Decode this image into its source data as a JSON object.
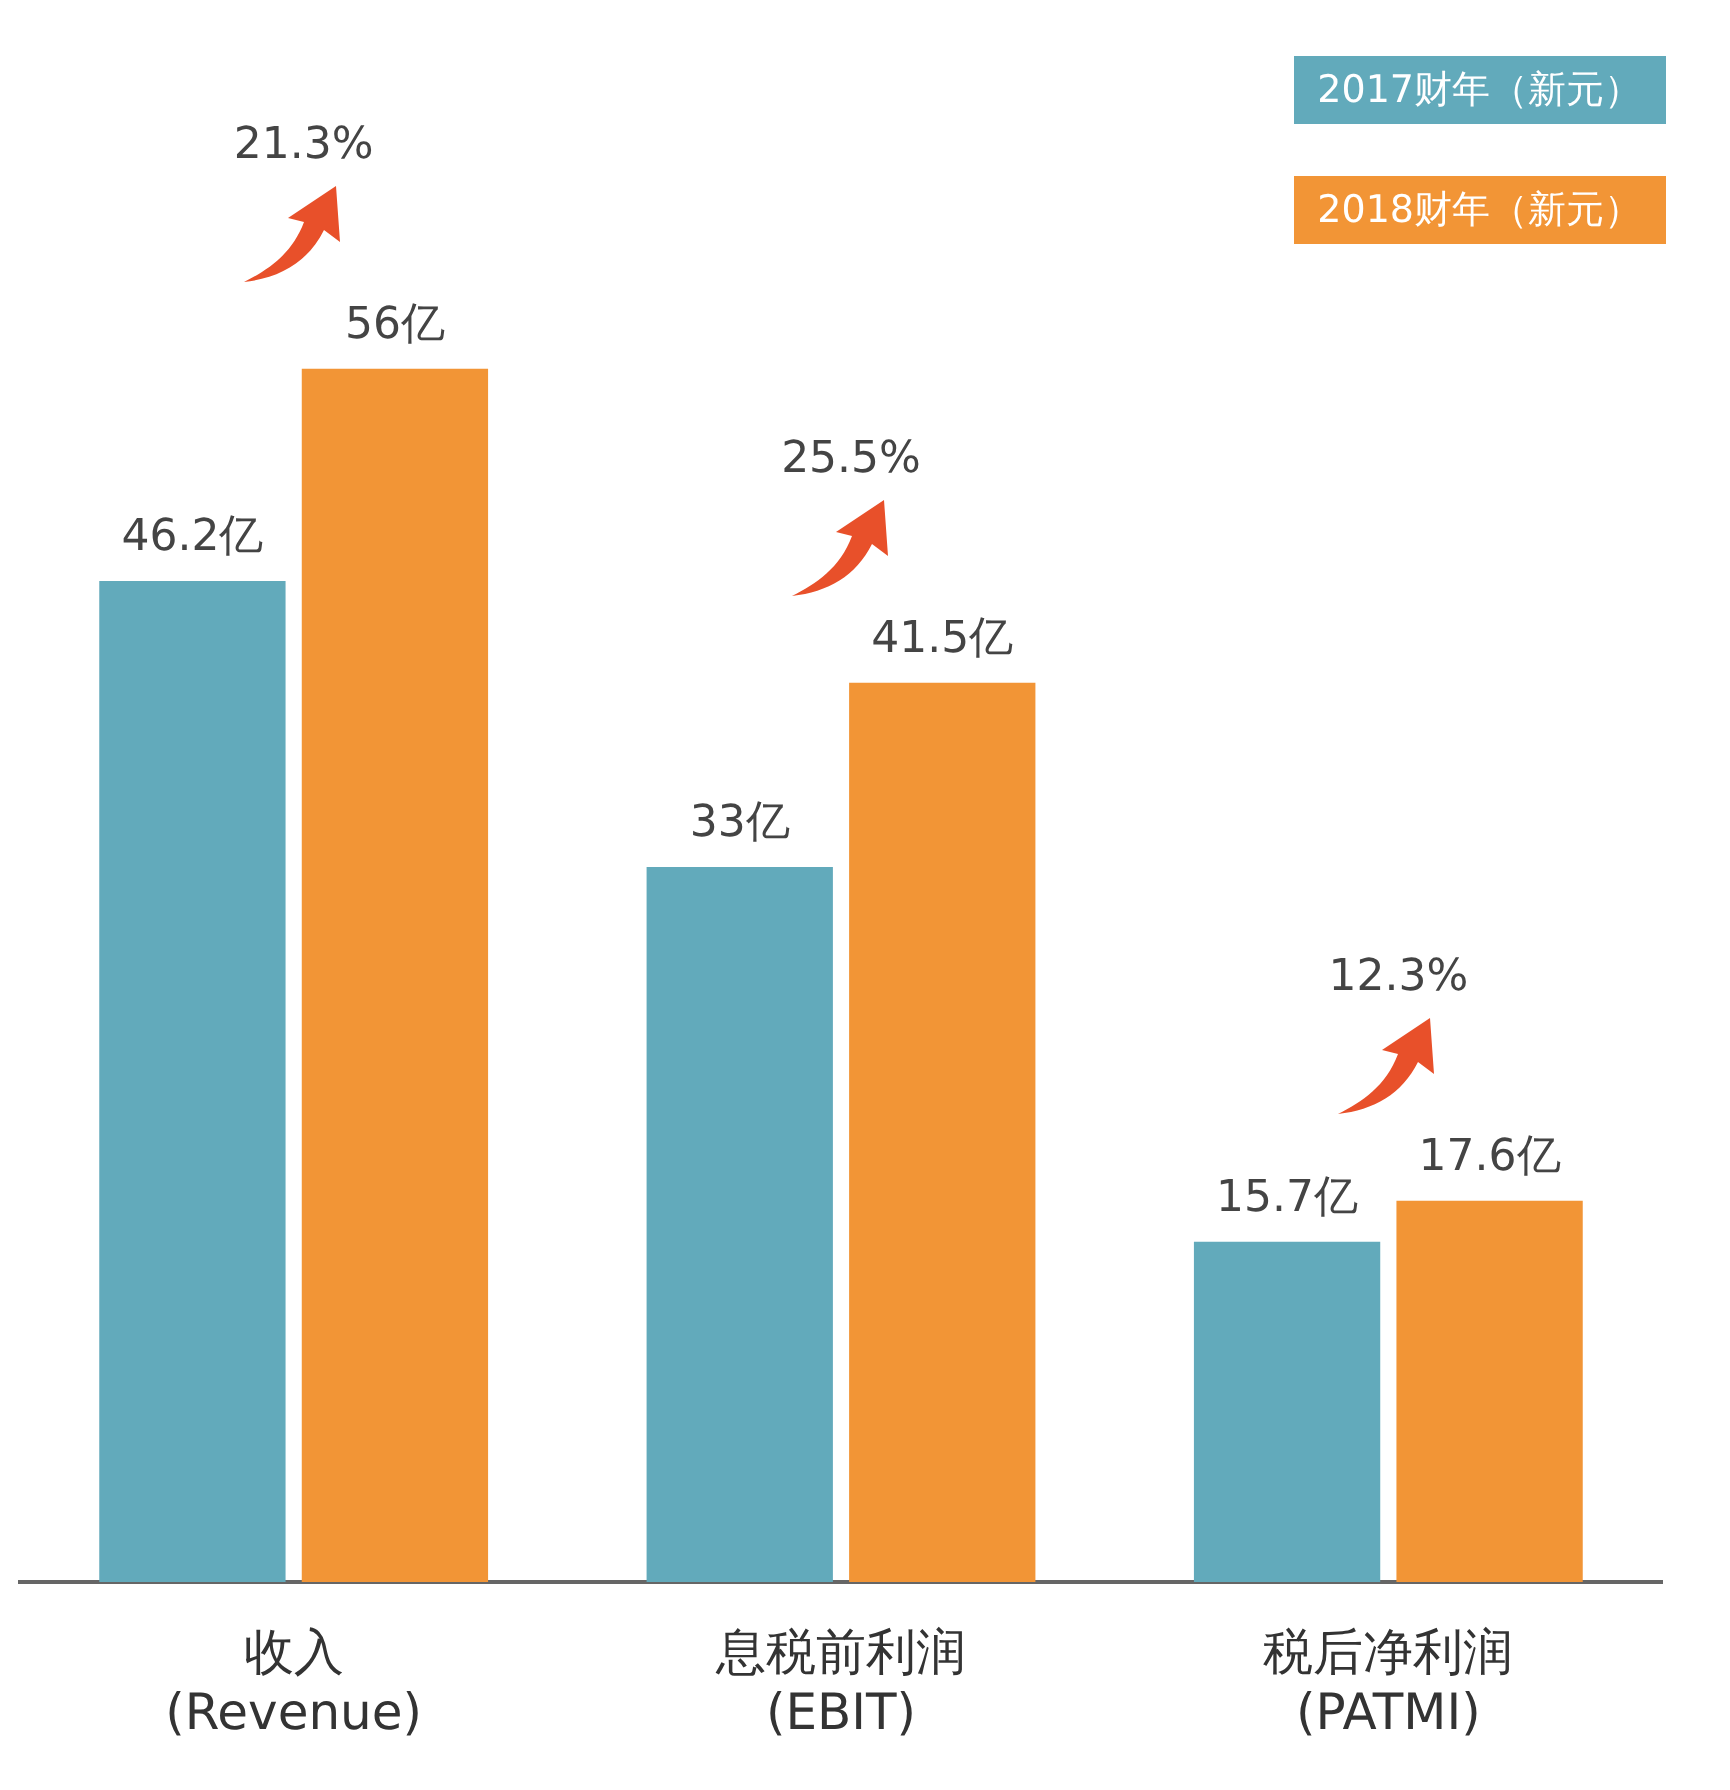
{
  "chart_data": {
    "type": "bar",
    "categories": [
      "收入\n(Revenue)",
      "息税前利润\n(EBIT)",
      "税后净利润\n(PATMI)"
    ],
    "series": [
      {
        "name": "2017财年（新元）",
        "color": "#62aabb",
        "values": [
          46.2,
          33,
          15.7
        ],
        "value_labels": [
          "46.2亿",
          "33亿",
          "15.7亿"
        ]
      },
      {
        "name": "2018财年（新元）",
        "color": "#f29536",
        "values": [
          56,
          41.5,
          17.6
        ],
        "value_labels": [
          "56亿",
          "41.5亿",
          "17.6亿"
        ]
      }
    ],
    "legend": "top right",
    "annotations": [
      "21.3%",
      "25.5%",
      "12.3%"
    ]
  }
}
